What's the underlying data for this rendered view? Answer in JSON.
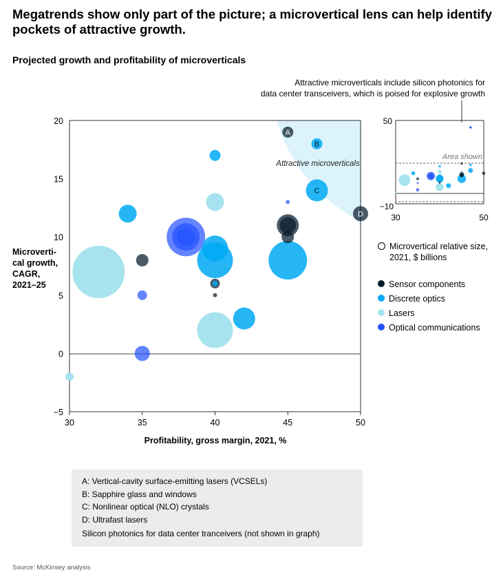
{
  "title": "Megatrends show only part of the picture; a microvertical lens can help identify pockets of attractive growth.",
  "subtitle": "Projected growth and profitability of microverticals",
  "callout": {
    "line1": "Attractive microverticals include silicon photonics for",
    "line2": "data center transceivers, which is poised for explosive growth"
  },
  "zone_label": "Attractive microverticals",
  "inset": {
    "area_label": "Area shown",
    "xlim": [
      30,
      50
    ],
    "ylim": [
      -10,
      50
    ],
    "y_ticks": [
      "50",
      "−10"
    ],
    "x_ticks": [
      "30",
      "50"
    ]
  },
  "legend": {
    "size_label": "Microvertical relative size, 2021, $ billions",
    "items": [
      {
        "label": "Sensor components",
        "color": "#051c2c"
      },
      {
        "label": "Discrete optics",
        "color": "#00a9f4"
      },
      {
        "label": "Lasers",
        "color": "#a6e3ee"
      },
      {
        "label": "Optical communications",
        "color": "#2251ff"
      }
    ]
  },
  "notes": {
    "lines": [
      "A: Vertical-cavity surface-emitting lasers (VCSELs)",
      "B: Sapphire glass and windows",
      "C: Nonlinear optical (NLO) crystals",
      "D: Ultrafast lasers"
    ],
    "extra": "Silicon photonics for data center tranceivers (not shown in graph)"
  },
  "source": "Source: McKinsey analysis",
  "chart_data": {
    "type": "scatter",
    "xlabel": "Profitability, gross margin, 2021, %",
    "ylabel": "Microvertical growth, CAGR, 2021–25",
    "xlim": [
      30,
      50
    ],
    "ylim": [
      -5,
      20
    ],
    "x_ticks": [
      30,
      35,
      40,
      45,
      50
    ],
    "y_ticks": [
      20,
      15,
      10,
      5,
      0,
      -5
    ],
    "y_tick_labels": [
      "20",
      "15",
      "10",
      "5",
      "0",
      "−5"
    ],
    "colors": {
      "Sensor components": "#051c2c",
      "Discrete optics": "#00a9f4",
      "Lasers": "#a6e3ee",
      "Optical communications": "#2251ff"
    },
    "points": [
      {
        "x": 32,
        "y": 7,
        "size": 38,
        "category": "Lasers"
      },
      {
        "x": 34,
        "y": 12,
        "size": 13,
        "category": "Discrete optics"
      },
      {
        "x": 35,
        "y": 8,
        "size": 9,
        "category": "Sensor components"
      },
      {
        "x": 35,
        "y": 5,
        "size": 7,
        "category": "Optical communications"
      },
      {
        "x": 35,
        "y": 0,
        "size": 11,
        "category": "Optical communications"
      },
      {
        "x": 30,
        "y": -2,
        "size": 6,
        "category": "Lasers"
      },
      {
        "x": 38,
        "y": 10,
        "size": 28,
        "category": "Optical communications"
      },
      {
        "x": 38,
        "y": 10,
        "size": 20,
        "category": "Optical communications"
      },
      {
        "x": 38,
        "y": 10,
        "size": 13,
        "category": "Optical communications"
      },
      {
        "x": 40,
        "y": 17,
        "size": 8,
        "category": "Discrete optics"
      },
      {
        "x": 40,
        "y": 13,
        "size": 13,
        "category": "Lasers"
      },
      {
        "x": 40,
        "y": 9,
        "size": 19,
        "category": "Discrete optics"
      },
      {
        "x": 40,
        "y": 8,
        "size": 26,
        "category": "Discrete optics"
      },
      {
        "x": 40,
        "y": 6,
        "size": 7,
        "category": "Sensor components"
      },
      {
        "x": 40,
        "y": 6,
        "size": 4,
        "category": "Discrete optics"
      },
      {
        "x": 40,
        "y": 5,
        "size": 3,
        "category": "Sensor components"
      },
      {
        "x": 40,
        "y": 2,
        "size": 26,
        "category": "Lasers"
      },
      {
        "x": 40,
        "y": 2,
        "size": 10,
        "category": "Lasers"
      },
      {
        "x": 42,
        "y": 3,
        "size": 16,
        "category": "Discrete optics"
      },
      {
        "x": 45,
        "y": 13,
        "size": 3,
        "category": "Optical communications"
      },
      {
        "x": 45,
        "y": 11,
        "size": 16,
        "category": "Sensor components"
      },
      {
        "x": 45,
        "y": 11,
        "size": 12,
        "category": "Sensor components"
      },
      {
        "x": 45,
        "y": 10,
        "size": 9,
        "category": "Sensor components"
      },
      {
        "x": 45,
        "y": 8,
        "size": 28,
        "category": "Discrete optics"
      },
      {
        "x": 45,
        "y": 19,
        "size": 8,
        "category": "Sensor components",
        "label": "A"
      },
      {
        "x": 47,
        "y": 18,
        "size": 8,
        "category": "Discrete optics",
        "label": "B"
      },
      {
        "x": 47,
        "y": 14,
        "size": 16,
        "category": "Discrete optics",
        "label": "C"
      },
      {
        "x": 50,
        "y": 12,
        "size": 11,
        "category": "Sensor components",
        "label": "D"
      }
    ],
    "inset_points": [
      {
        "x": 47,
        "y": 45,
        "category": "Optical communications"
      }
    ]
  }
}
